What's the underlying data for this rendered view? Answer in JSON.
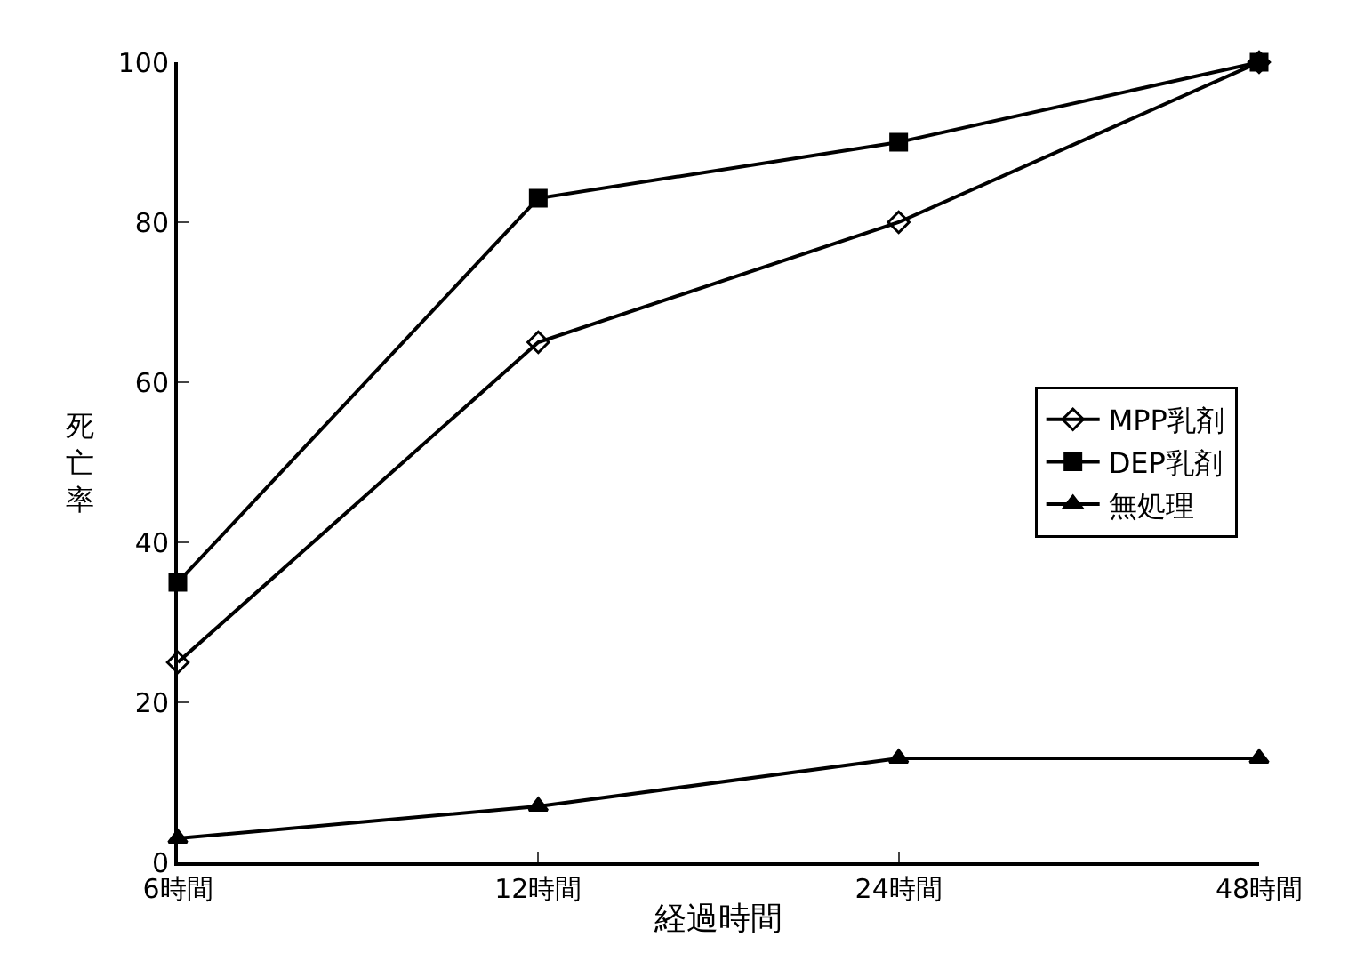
{
  "chart_data": {
    "type": "line",
    "xlabel": "経過時間",
    "ylabel": "死亡率",
    "categories": [
      "6時間",
      "12時間",
      "24時間",
      "48時間"
    ],
    "series": [
      {
        "name": "MPP乳剤",
        "color": "#000000",
        "marker": "diamond",
        "values": [
          25,
          65,
          80,
          100
        ]
      },
      {
        "name": "DEP乳剤",
        "color": "#000000",
        "marker": "square",
        "values": [
          35,
          83,
          90,
          100
        ]
      },
      {
        "name": "無処理",
        "color": "#000000",
        "marker": "triangle",
        "values": [
          3,
          7,
          13,
          13
        ]
      }
    ],
    "ylim": [
      0,
      100
    ],
    "yticks": [
      0,
      20,
      40,
      60,
      80,
      100
    ],
    "legend": "right",
    "line_style": "solid"
  }
}
